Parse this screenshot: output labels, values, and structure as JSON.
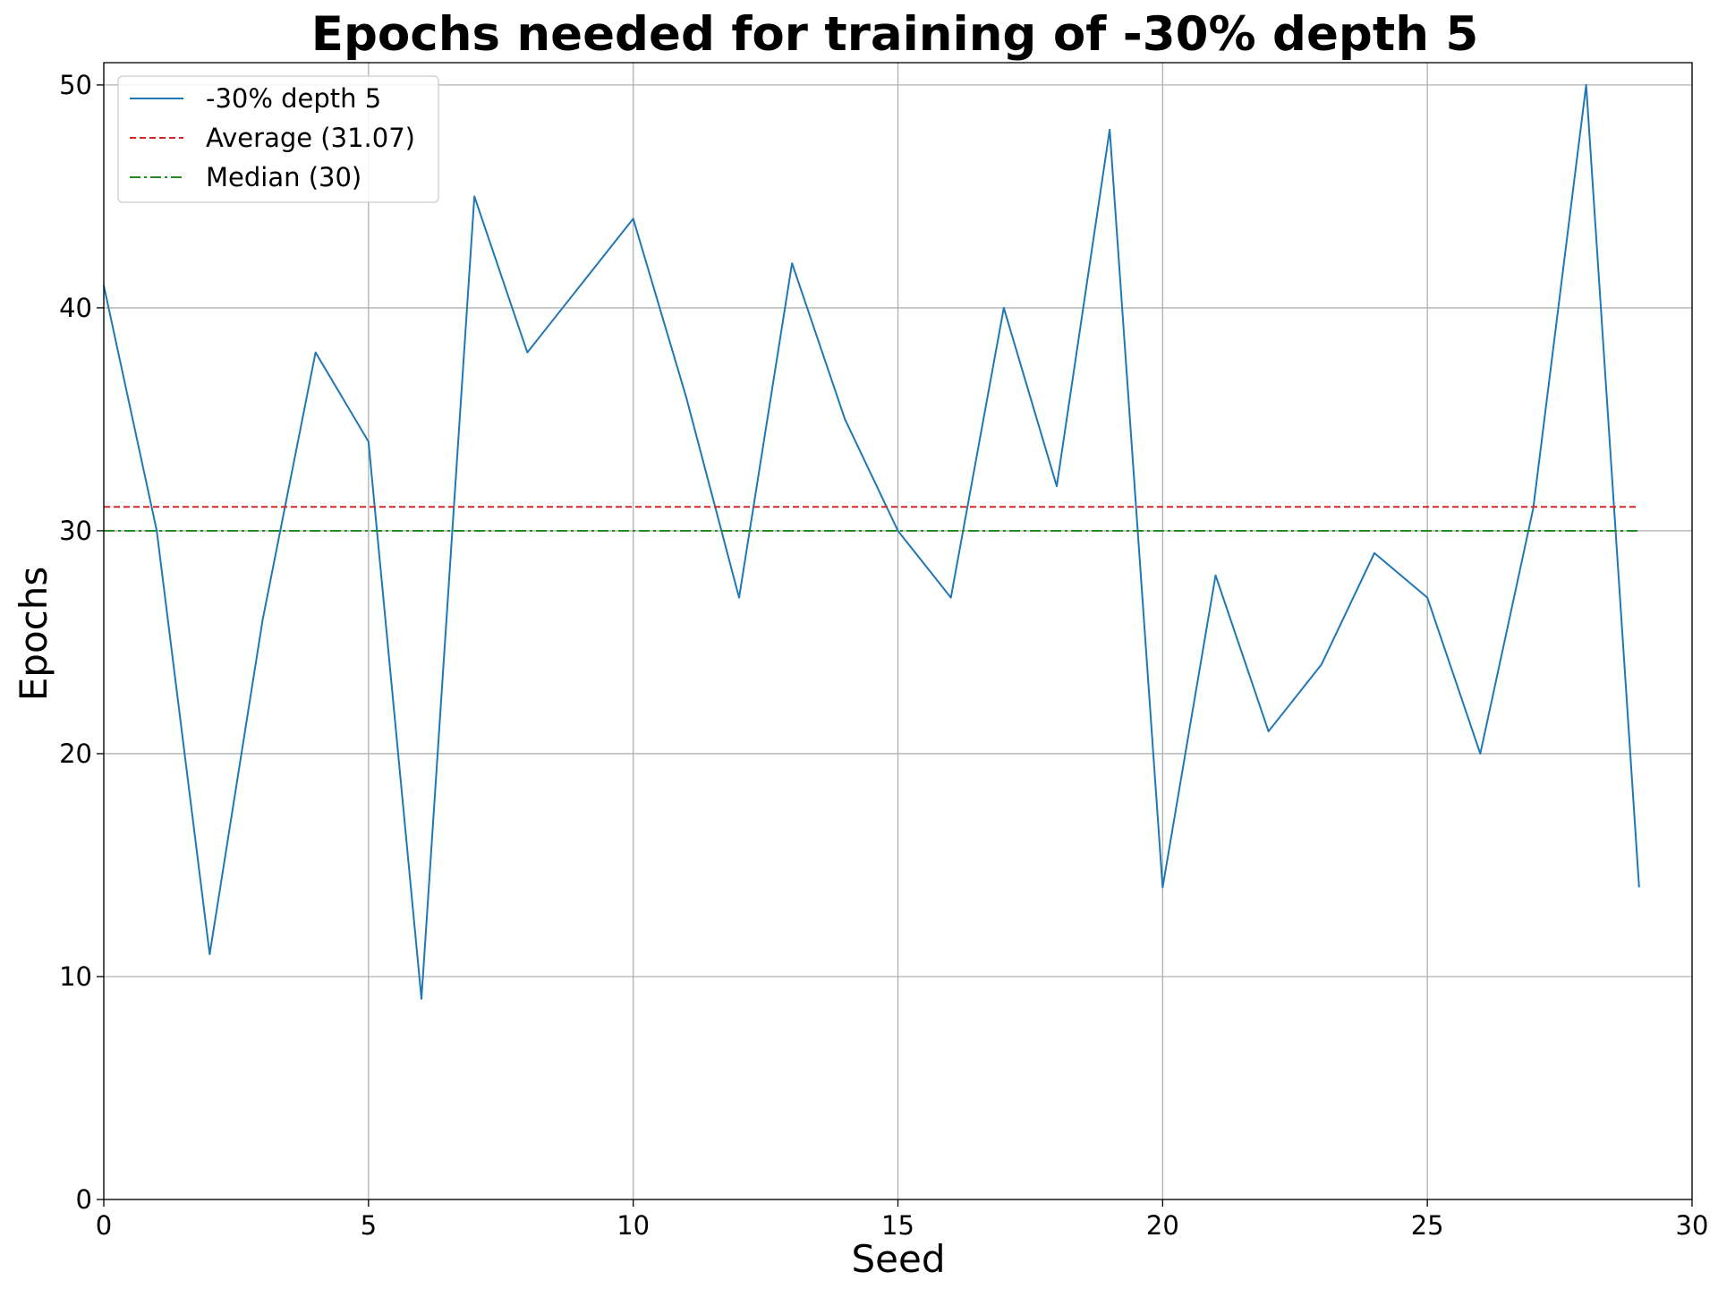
{
  "chart_data": {
    "type": "line",
    "title": "Epochs needed for training of -30% depth 5",
    "xlabel": "Seed",
    "ylabel": "Epochs",
    "xlim": [
      0,
      30
    ],
    "ylim": [
      0,
      51
    ],
    "xticks": [
      0,
      5,
      10,
      15,
      20,
      25,
      30
    ],
    "yticks": [
      0,
      10,
      20,
      30,
      40,
      50
    ],
    "grid": true,
    "legend_position": "top-left",
    "series": [
      {
        "name": "-30% depth 5",
        "style": "solid",
        "color": "#1f77b4",
        "x": [
          0,
          1,
          2,
          3,
          4,
          5,
          6,
          7,
          8,
          9,
          10,
          11,
          12,
          13,
          14,
          15,
          16,
          17,
          18,
          19,
          20,
          21,
          22,
          23,
          24,
          25,
          26,
          27,
          28,
          29
        ],
        "values": [
          41,
          30,
          11,
          26,
          38,
          34,
          9,
          45,
          38,
          41,
          44,
          36,
          27,
          42,
          35,
          30,
          27,
          40,
          32,
          48,
          14,
          28,
          21,
          24,
          29,
          27,
          20,
          31,
          50,
          14
        ]
      },
      {
        "name": "Average (31.07)",
        "style": "dashed",
        "color": "#d62728",
        "x": [
          0,
          29
        ],
        "values": [
          31.07,
          31.07
        ]
      },
      {
        "name": "Median (30)",
        "style": "dashdot",
        "color": "#228b22",
        "x": [
          0,
          29
        ],
        "values": [
          30,
          30
        ]
      }
    ]
  }
}
